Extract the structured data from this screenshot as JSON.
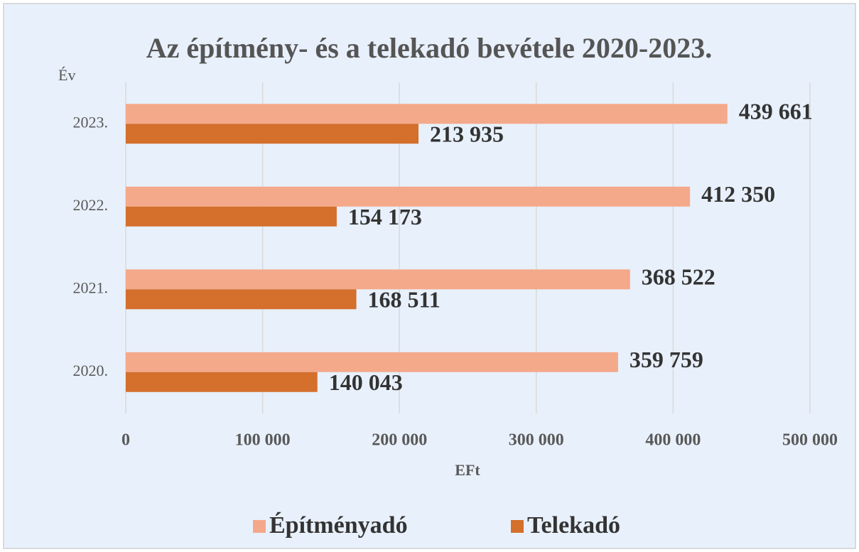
{
  "chart_data": {
    "type": "bar",
    "orientation": "horizontal",
    "title": "Az építmény- és a telekadó bevétele 2020-2023.",
    "y_axis_label": "Év",
    "x_axis_label": "EFt",
    "categories": [
      "2020.",
      "2021.",
      "2022.",
      "2023."
    ],
    "series": [
      {
        "name": "Építményadó",
        "color": "#f4a98a",
        "values": [
          359759,
          368522,
          412350,
          439661
        ],
        "value_labels": [
          "359 759",
          "368 522",
          "412 350",
          "439 661"
        ]
      },
      {
        "name": "Telekadó",
        "color": "#d46f2c",
        "values": [
          140043,
          168511,
          154173,
          213935
        ],
        "value_labels": [
          "140 043",
          "168 511",
          "154 173",
          "213 935"
        ]
      }
    ],
    "xlim": [
      0,
      500000
    ],
    "xticks": [
      0,
      {
        "value": 100000,
        "label": "100 000"
      },
      {
        "value": 200000,
        "label": "200 000"
      },
      {
        "value": 300000,
        "label": "300 000"
      },
      {
        "value": 400000,
        "label": "400 000"
      },
      {
        "value": 500000,
        "label": "500 000"
      }
    ],
    "grid": true,
    "legend": "bottom"
  }
}
